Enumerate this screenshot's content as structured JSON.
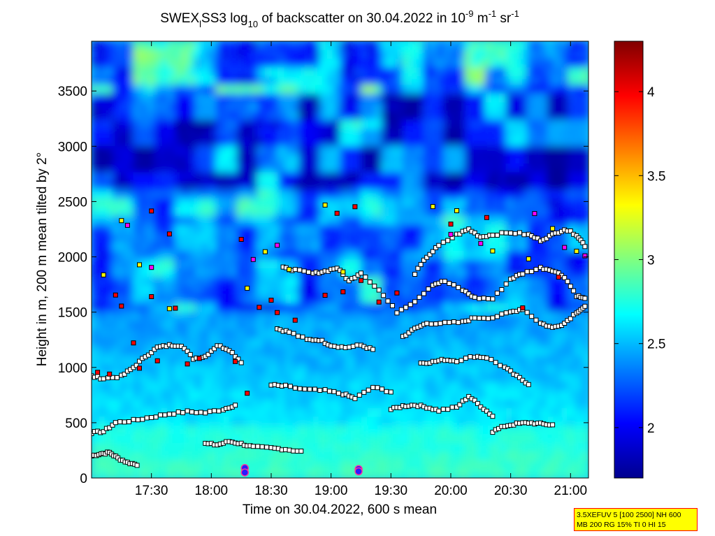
{
  "chart_data": {
    "type": "heatmap",
    "title": {
      "prefix": "SWEX",
      "subscript": "l",
      "middle": "SS3 log",
      "log_base": "10",
      "suffix": " of backscatter on 30.04.2022 in 10",
      "exp1": "-9",
      "unit1": " m",
      "exp2": "-1",
      "unit2": " sr",
      "exp3": "-1"
    },
    "xlabel": "Time on 30.04.2022, 600 s mean",
    "ylabel": "Height in m, 200 m mean tilted by 2°",
    "xlim_hours": [
      17.0,
      21.15
    ],
    "ylim": [
      0,
      3950
    ],
    "x_ticks": [
      {
        "hour": 17.5,
        "label": "17:30"
      },
      {
        "hour": 18.0,
        "label": "18:00"
      },
      {
        "hour": 18.5,
        "label": "18:30"
      },
      {
        "hour": 19.0,
        "label": "19:00"
      },
      {
        "hour": 19.5,
        "label": "19:30"
      },
      {
        "hour": 20.0,
        "label": "20:00"
      },
      {
        "hour": 20.5,
        "label": "20:30"
      },
      {
        "hour": 21.0,
        "label": "21:00"
      }
    ],
    "y_ticks": [
      0,
      500,
      1000,
      1500,
      2000,
      2500,
      3000,
      3500
    ],
    "colorbar": {
      "range": [
        1.7,
        4.3
      ],
      "ticks": [
        2,
        2.5,
        3,
        3.5,
        4
      ],
      "colormap": "jet"
    },
    "layer_markers": [
      {
        "name": "layer-bottom",
        "color": "#ffffff",
        "points": [
          [
            17.0,
            200
          ],
          [
            17.08,
            220
          ],
          [
            17.15,
            230
          ],
          [
            17.22,
            180
          ],
          [
            17.3,
            140
          ],
          [
            17.38,
            120
          ]
        ]
      },
      {
        "name": "layer-500",
        "color": "#ffffff",
        "points": [
          [
            17.0,
            410
          ],
          [
            17.1,
            420
          ],
          [
            17.2,
            500
          ],
          [
            17.35,
            520
          ],
          [
            17.5,
            550
          ],
          [
            17.65,
            580
          ],
          [
            17.8,
            600
          ],
          [
            17.95,
            590
          ],
          [
            18.1,
            620
          ],
          [
            18.2,
            660
          ]
        ]
      },
      {
        "name": "layer-300",
        "color": "#ffffff",
        "points": [
          [
            17.95,
            310
          ],
          [
            18.05,
            300
          ],
          [
            18.15,
            330
          ],
          [
            18.25,
            310
          ],
          [
            18.35,
            280
          ],
          [
            18.5,
            270
          ],
          [
            18.62,
            260
          ],
          [
            18.75,
            240
          ]
        ]
      },
      {
        "name": "layer-1000",
        "color": "#ffffff",
        "points": [
          [
            17.0,
            920
          ],
          [
            17.1,
            900
          ],
          [
            17.25,
            920
          ],
          [
            17.35,
            1000
          ],
          [
            17.45,
            1100
          ],
          [
            17.55,
            1180
          ],
          [
            17.65,
            1200
          ],
          [
            17.75,
            1200
          ],
          [
            17.85,
            1080
          ],
          [
            17.95,
            1100
          ],
          [
            18.05,
            1200
          ],
          [
            18.15,
            1160
          ],
          [
            18.25,
            1050
          ]
        ]
      },
      {
        "name": "layer-1200-mid",
        "color": "#ffffff",
        "points": [
          [
            18.55,
            1350
          ],
          [
            18.65,
            1320
          ],
          [
            18.8,
            1250
          ],
          [
            18.9,
            1250
          ],
          [
            19.0,
            1200
          ],
          [
            19.12,
            1180
          ],
          [
            19.25,
            1200
          ],
          [
            19.35,
            1160
          ]
        ]
      },
      {
        "name": "layer-800",
        "color": "#ffffff",
        "points": [
          [
            18.5,
            840
          ],
          [
            18.62,
            830
          ],
          [
            18.78,
            800
          ],
          [
            18.95,
            790
          ],
          [
            19.1,
            760
          ],
          [
            19.2,
            720
          ],
          [
            19.35,
            820
          ],
          [
            19.5,
            780
          ]
        ]
      },
      {
        "name": "layer-600",
        "color": "#ffffff",
        "points": [
          [
            19.5,
            620
          ],
          [
            19.6,
            650
          ],
          [
            19.7,
            660
          ],
          [
            19.8,
            640
          ],
          [
            19.9,
            610
          ],
          [
            20.05,
            640
          ],
          [
            20.15,
            740
          ],
          [
            20.25,
            650
          ],
          [
            20.35,
            560
          ]
        ]
      },
      {
        "name": "layer-1050",
        "color": "#ffffff",
        "points": [
          [
            19.75,
            1040
          ],
          [
            19.85,
            1050
          ],
          [
            19.95,
            1070
          ],
          [
            20.05,
            1060
          ],
          [
            20.2,
            1100
          ],
          [
            20.3,
            1090
          ],
          [
            20.45,
            1000
          ],
          [
            20.55,
            920
          ],
          [
            20.65,
            850
          ]
        ]
      },
      {
        "name": "layer-450",
        "color": "#ffffff",
        "points": [
          [
            20.35,
            420
          ],
          [
            20.45,
            470
          ],
          [
            20.55,
            490
          ],
          [
            20.65,
            500
          ],
          [
            20.75,
            490
          ],
          [
            20.85,
            480
          ]
        ]
      },
      {
        "name": "layer-1400",
        "color": "#ffffff",
        "points": [
          [
            19.6,
            1280
          ],
          [
            19.7,
            1350
          ],
          [
            19.8,
            1400
          ],
          [
            19.95,
            1400
          ],
          [
            20.1,
            1410
          ],
          [
            20.2,
            1450
          ],
          [
            20.35,
            1450
          ],
          [
            20.5,
            1500
          ],
          [
            20.6,
            1530
          ],
          [
            20.75,
            1400
          ],
          [
            20.85,
            1360
          ],
          [
            20.95,
            1400
          ],
          [
            21.05,
            1500
          ],
          [
            21.12,
            1550
          ]
        ]
      },
      {
        "name": "layer-1800",
        "color": "#ffffff",
        "points": [
          [
            18.6,
            1900
          ],
          [
            18.7,
            1880
          ],
          [
            18.85,
            1850
          ],
          [
            18.95,
            1870
          ],
          [
            19.05,
            1900
          ],
          [
            19.15,
            1780
          ],
          [
            19.25,
            1860
          ],
          [
            19.4,
            1700
          ],
          [
            19.55,
            1500
          ],
          [
            19.7,
            1600
          ],
          [
            19.85,
            1750
          ],
          [
            19.95,
            1780
          ],
          [
            20.1,
            1700
          ],
          [
            20.2,
            1630
          ],
          [
            20.35,
            1620
          ],
          [
            20.5,
            1800
          ],
          [
            20.6,
            1850
          ],
          [
            20.75,
            1900
          ],
          [
            20.85,
            1880
          ],
          [
            20.95,
            1820
          ],
          [
            21.05,
            1650
          ],
          [
            21.12,
            1620
          ]
        ]
      },
      {
        "name": "layer-2100",
        "color": "#ffffff",
        "points": [
          [
            19.7,
            1850
          ],
          [
            19.8,
            2000
          ],
          [
            19.9,
            2100
          ],
          [
            20.05,
            2200
          ],
          [
            20.15,
            2250
          ],
          [
            20.25,
            2180
          ],
          [
            20.35,
            2200
          ],
          [
            20.5,
            2220
          ],
          [
            20.65,
            2200
          ],
          [
            20.75,
            2150
          ],
          [
            20.85,
            2200
          ],
          [
            20.95,
            2250
          ],
          [
            21.05,
            2200
          ],
          [
            21.12,
            2100
          ]
        ]
      },
      {
        "name": "red-hits",
        "color": "#ff0000",
        "points": [
          [
            17.05,
            960
          ],
          [
            17.15,
            940
          ],
          [
            17.4,
            1000
          ],
          [
            17.55,
            1060
          ],
          [
            17.8,
            1040
          ],
          [
            17.9,
            1080
          ],
          [
            18.2,
            1050
          ],
          [
            18.4,
            1540
          ],
          [
            18.5,
            1600
          ],
          [
            18.55,
            1500
          ],
          [
            18.7,
            1420
          ],
          [
            18.95,
            1650
          ],
          [
            19.1,
            1680
          ],
          [
            19.4,
            1600
          ],
          [
            19.55,
            1680
          ],
          [
            19.25,
            1790
          ],
          [
            17.5,
            1640
          ],
          [
            17.25,
            1550
          ],
          [
            17.35,
            1220
          ],
          [
            17.2,
            1650
          ],
          [
            18.25,
            2150
          ],
          [
            17.65,
            2200
          ],
          [
            17.5,
            2420
          ],
          [
            19.05,
            2400
          ],
          [
            19.2,
            2450
          ],
          [
            20.0,
            2300
          ],
          [
            20.3,
            2350
          ],
          [
            20.9,
            1820
          ],
          [
            20.6,
            1540
          ],
          [
            17.7,
            1540
          ],
          [
            18.3,
            770
          ]
        ]
      },
      {
        "name": "yellow-hits",
        "color": "#ffff00",
        "points": [
          [
            17.25,
            2320
          ],
          [
            17.4,
            1920
          ],
          [
            17.65,
            1540
          ],
          [
            18.3,
            1720
          ],
          [
            18.45,
            2050
          ],
          [
            18.65,
            1880
          ],
          [
            18.95,
            2460
          ],
          [
            19.1,
            1860
          ],
          [
            19.85,
            2460
          ],
          [
            20.05,
            2420
          ],
          [
            20.35,
            2050
          ],
          [
            20.65,
            1980
          ],
          [
            20.85,
            2250
          ],
          [
            21.05,
            2050
          ],
          [
            17.1,
            1840
          ]
        ]
      },
      {
        "name": "magenta-hits",
        "color": "#ff00ff",
        "points": [
          [
            17.3,
            2280
          ],
          [
            17.5,
            1900
          ],
          [
            18.35,
            1970
          ],
          [
            18.55,
            2100
          ],
          [
            20.0,
            2200
          ],
          [
            20.25,
            2120
          ],
          [
            20.7,
            2400
          ],
          [
            20.95,
            2080
          ],
          [
            21.12,
            2000
          ]
        ]
      },
      {
        "name": "purple-blobs",
        "color": "#2a1aff",
        "points": [
          [
            18.28,
            90
          ],
          [
            18.28,
            50
          ],
          [
            19.23,
            80
          ],
          [
            19.23,
            60
          ]
        ]
      }
    ]
  },
  "info_box": {
    "line1": "3.5XEFUV 5 [100 2500] NH 600",
    "line2": "MB 200 RG 15% TI 0 HI 15"
  }
}
